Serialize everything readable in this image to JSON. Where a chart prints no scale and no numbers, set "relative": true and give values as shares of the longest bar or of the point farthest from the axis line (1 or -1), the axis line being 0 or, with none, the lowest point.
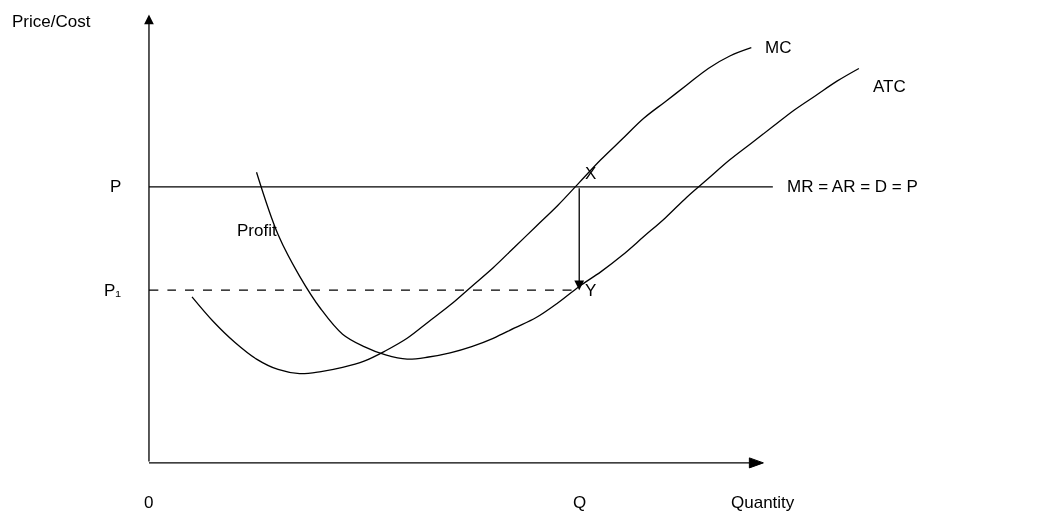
{
  "chart_data": {
    "type": "line",
    "relative": true,
    "xlabel": "Quantity",
    "ylabel": "Price/Cost",
    "legend": false,
    "categories": [
      null,
      null,
      null,
      null,
      null,
      null,
      null,
      null,
      null,
      null,
      null,
      null,
      null,
      null,
      null,
      null,
      null,
      null,
      null,
      null,
      null,
      null,
      null,
      null,
      null,
      null,
      null,
      null,
      null,
      null,
      null,
      null,
      null,
      null
    ],
    "series": [
      {
        "name": "MC",
        "color": "#000000",
        "values": [
          null,
          null,
          0.4,
          0.34,
          0.29,
          0.25,
          0.225,
          0.215,
          0.22,
          0.23,
          0.245,
          0.27,
          0.3,
          0.34,
          0.38,
          0.425,
          0.47,
          0.52,
          0.57,
          0.62,
          0.675,
          0.73,
          0.78,
          0.83,
          0.87,
          0.91,
          0.95,
          0.98,
          1.0,
          null,
          null,
          null,
          null,
          null
        ]
      },
      {
        "name": "ATC",
        "color": "#000000",
        "values": [
          null,
          null,
          null,
          null,
          null,
          0.7,
          0.55,
          0.45,
          0.37,
          0.31,
          0.28,
          0.26,
          0.25,
          0.255,
          0.265,
          0.28,
          0.3,
          0.325,
          0.35,
          0.385,
          0.425,
          0.46,
          0.5,
          0.545,
          0.59,
          0.64,
          0.685,
          0.73,
          0.77,
          0.81,
          0.85,
          0.885,
          0.92,
          0.95
        ]
      },
      {
        "name": "MR = AR = D = P",
        "color": "#000000",
        "values": [
          0.665,
          0.665,
          0.665,
          0.665,
          0.665,
          0.665,
          0.665,
          0.665,
          0.665,
          0.665,
          0.665,
          0.665,
          0.665,
          0.665,
          0.665,
          0.665,
          0.665,
          0.665,
          0.665,
          0.665,
          0.665,
          0.665,
          0.665,
          0.665,
          0.665,
          0.665,
          0.665,
          0.665,
          0.665,
          0.665,
          null,
          null,
          null,
          null
        ]
      },
      {
        "color": "#000000",
        "line_style": "dashed",
        "values": [
          0.416,
          0.416,
          0.416,
          0.416,
          0.416,
          0.416,
          0.416,
          0.416,
          0.416,
          0.416,
          0.416,
          0.416,
          0.416,
          0.416,
          0.416,
          0.416,
          0.416,
          0.416,
          0.416,
          0.416,
          0.416,
          null,
          null,
          null,
          null,
          null,
          null,
          null,
          null,
          null,
          null,
          null,
          null,
          null
        ]
      }
    ],
    "annotations": [
      "X",
      "Y",
      "Profit",
      "P",
      "P₁",
      "0",
      "Q"
    ]
  }
}
